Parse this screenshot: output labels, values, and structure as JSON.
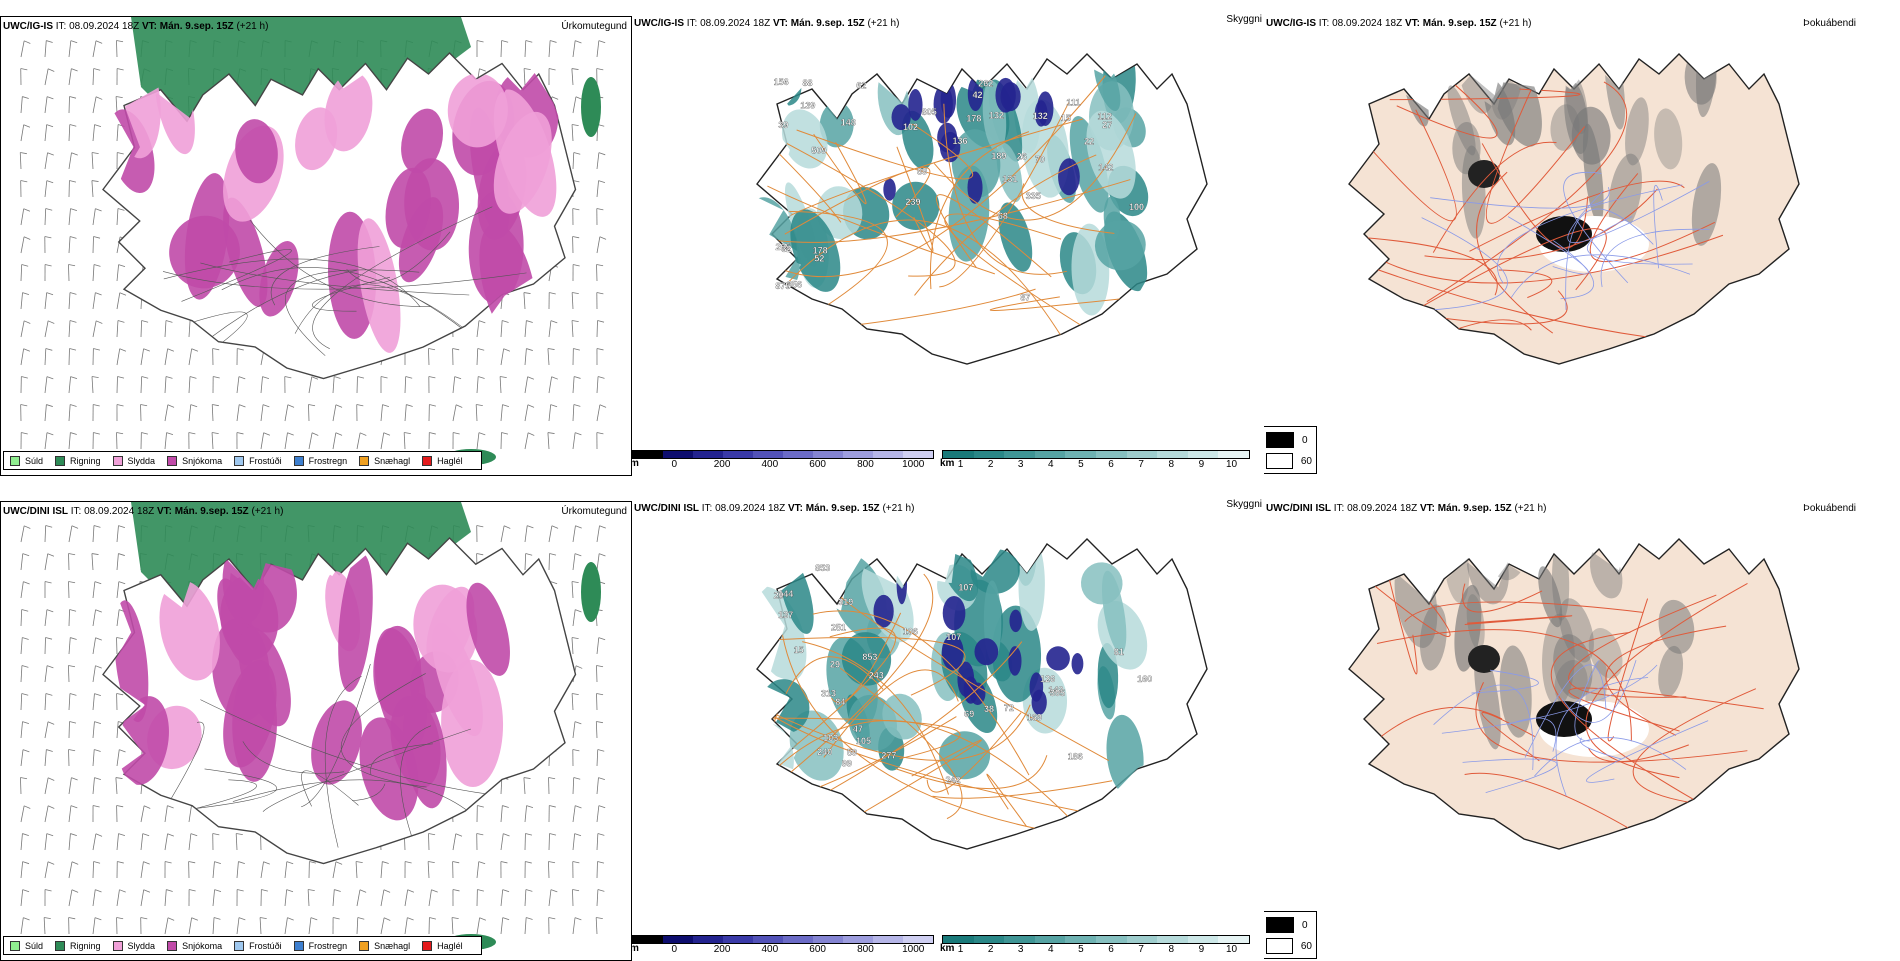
{
  "rows": [
    {
      "model": "UWC/IG-IS",
      "it_label": "IT:",
      "it_value": "08.09.2024 18Z",
      "vt_label": "VT:",
      "vt_value": "Mán. 9.sep. 15Z",
      "lead": "(+21 h)",
      "peaks": [
        "156",
        "239",
        "335",
        "178",
        "205",
        "22",
        "148",
        "87",
        "136",
        "111",
        "132",
        "142",
        "131",
        "356",
        "112",
        "62",
        "26",
        "178",
        "52",
        "32",
        "509",
        "139",
        "189",
        "262",
        "102",
        "805",
        "100",
        "89",
        "39",
        "68",
        "88",
        "42",
        "132",
        "70",
        "875",
        "27",
        "15"
      ]
    },
    {
      "model": "UWC/DINI ISL",
      "it_label": "IT:",
      "it_value": "08.09.2024 18Z",
      "vt_label": "VT:",
      "vt_value": "Mán. 9.sep. 15Z",
      "lead": "(+21 h)",
      "peaks": [
        "20",
        "853",
        "47",
        "29",
        "169",
        "105",
        "137",
        "126",
        "251",
        "319",
        "240",
        "107",
        "242",
        "313",
        "277",
        "103",
        "81",
        "243",
        "142",
        "144",
        "106",
        "186",
        "853",
        "99",
        "72",
        "84",
        "59",
        "305",
        "107",
        "69",
        "160",
        "15",
        "38"
      ]
    }
  ],
  "fields": {
    "precip_type": "Úrkomutegund",
    "visibility": "Skyggni",
    "fog": "Þokuábendi"
  },
  "precip_legend": [
    {
      "label": "Súld",
      "color": "#90ee90"
    },
    {
      "label": "Rigning",
      "color": "#2e8b57"
    },
    {
      "label": "Slydda",
      "color": "#f0a0d8"
    },
    {
      "label": "Snjókoma",
      "color": "#c04aa8"
    },
    {
      "label": "Frostúði",
      "color": "#9fc8ef"
    },
    {
      "label": "Frostregn",
      "color": "#3d7fcf"
    },
    {
      "label": "Snæhagl",
      "color": "#f0a020"
    },
    {
      "label": "Haglél",
      "color": "#e41a1c"
    }
  ],
  "ceiling_bar": {
    "unit": "m",
    "ticks": [
      "0",
      "200",
      "400",
      "600",
      "800",
      "1000"
    ],
    "colors": [
      "#000000",
      "#0d0d6e",
      "#23238f",
      "#3a3aa8",
      "#5252b8",
      "#6b6bc6",
      "#8484d2",
      "#9d9dde",
      "#b6b6e8",
      "#cfcff2"
    ]
  },
  "visibility_bar": {
    "unit": "km",
    "ticks": [
      "1",
      "2",
      "3",
      "4",
      "5",
      "6",
      "7",
      "8",
      "9",
      "10"
    ],
    "colors": [
      "#1a7a7a",
      "#2a8787",
      "#3f9595",
      "#56a3a3",
      "#6eb2b2",
      "#86c0c0",
      "#9ecdcd",
      "#b6dbdb",
      "#cde8e8",
      "#e6f4f4"
    ]
  },
  "fog_key": {
    "high": "0",
    "low": "60"
  }
}
